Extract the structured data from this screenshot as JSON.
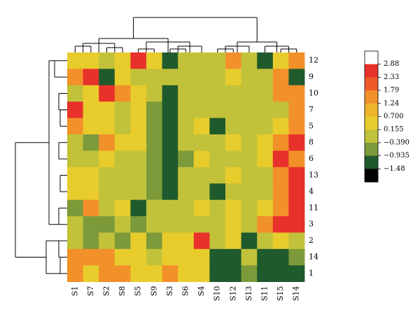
{
  "chart_data": {
    "type": "heatmap",
    "title": "",
    "xlabel": "",
    "ylabel": "",
    "columns": [
      "S1",
      "S7",
      "S2",
      "S8",
      "S5",
      "S9",
      "S3",
      "S6",
      "S4",
      "S10",
      "S12",
      "S13",
      "S11",
      "S15",
      "S14"
    ],
    "rows": [
      "12",
      "9",
      "10",
      "7",
      "5",
      "8",
      "6",
      "13",
      "4",
      "11",
      "3",
      "2",
      "14",
      "1"
    ],
    "legend": {
      "ticks": [
        "2.88",
        "2.33",
        "1.79",
        "1.24",
        "0.700",
        "0.155",
        "−0.390",
        "−0.935",
        "−1.48"
      ],
      "colors": [
        "#ffffff",
        "#e8312a",
        "#f05a2a",
        "#f2902a",
        "#eeb42c",
        "#e8cc2c",
        "#c2c23a",
        "#7d9a3a",
        "#1f5a2c",
        "#000000"
      ]
    },
    "values": [
      [
        1,
        1,
        0,
        1,
        3,
        1,
        -2,
        0,
        0,
        0,
        2,
        0,
        -2,
        1,
        2
      ],
      [
        2,
        3,
        -2,
        1,
        0,
        0,
        0,
        0,
        0,
        0,
        1,
        0,
        0,
        2,
        -2
      ],
      [
        0,
        1,
        3,
        2,
        1,
        0,
        -2,
        0,
        0,
        0,
        0,
        0,
        0,
        2,
        2
      ],
      [
        3,
        1,
        1,
        0,
        1,
        -1,
        -2,
        0,
        0,
        0,
        0,
        0,
        0,
        0,
        2
      ],
      [
        2,
        1,
        1,
        0,
        1,
        -1,
        -2,
        0,
        1,
        -2,
        0,
        0,
        0,
        1,
        2
      ],
      [
        0,
        -1,
        2,
        1,
        1,
        -1,
        -2,
        0,
        0,
        0,
        1,
        0,
        1,
        2,
        3
      ],
      [
        0,
        0,
        1,
        0,
        0,
        -1,
        -2,
        -1,
        1,
        0,
        0,
        0,
        1,
        3,
        2
      ],
      [
        1,
        1,
        0,
        0,
        0,
        -1,
        -2,
        0,
        0,
        0,
        1,
        0,
        0,
        2,
        3
      ],
      [
        1,
        1,
        0,
        0,
        0,
        -1,
        -2,
        0,
        0,
        -2,
        0,
        0,
        0,
        2,
        3
      ],
      [
        -1,
        2,
        0,
        1,
        -2,
        0,
        0,
        0,
        1,
        0,
        1,
        0,
        1,
        2,
        3
      ],
      [
        0,
        -1,
        -1,
        0,
        -1,
        0,
        0,
        0,
        0,
        0,
        1,
        0,
        2,
        3,
        3
      ],
      [
        0,
        -1,
        0,
        -1,
        1,
        -1,
        1,
        1,
        3,
        0,
        1,
        -2,
        0,
        1,
        0
      ],
      [
        2,
        2,
        2,
        1,
        1,
        0,
        1,
        1,
        1,
        -2,
        -2,
        0,
        -2,
        -2,
        -1
      ],
      [
        2,
        1,
        2,
        2,
        1,
        1,
        2,
        1,
        1,
        -2,
        -2,
        -1,
        -2,
        -2,
        -2
      ]
    ]
  }
}
